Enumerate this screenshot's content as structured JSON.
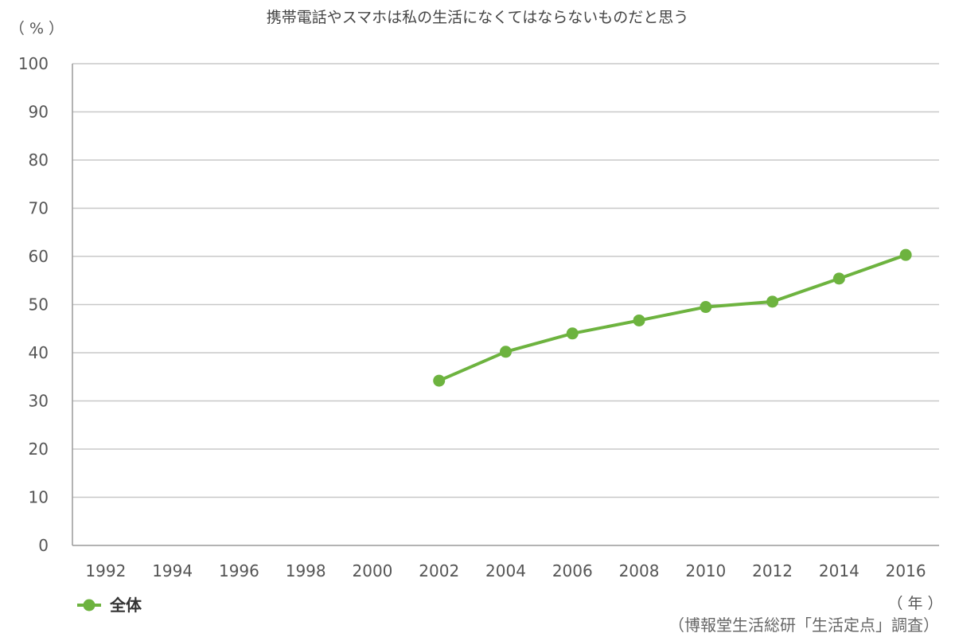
{
  "chart_data": {
    "type": "line",
    "title": "携帯電話やスマホは私の生活になくてはならないものだと思う",
    "y_unit_label": "（ % ）",
    "x_unit_label": "（ 年 ）",
    "source": "（博報堂生活総研「生活定点」調査）",
    "categories": [
      "1992",
      "1994",
      "1996",
      "1998",
      "2000",
      "2002",
      "2004",
      "2006",
      "2008",
      "2010",
      "2012",
      "2014",
      "2016"
    ],
    "y_ticks": [
      "0",
      "10",
      "20",
      "30",
      "40",
      "50",
      "60",
      "70",
      "80",
      "90",
      "100"
    ],
    "ylim": [
      0,
      100
    ],
    "grid": true,
    "legend_position": "bottom-left",
    "series": [
      {
        "name": "全体",
        "color": "#6db33f",
        "values": [
          null,
          null,
          null,
          null,
          null,
          34.2,
          40.2,
          44.0,
          46.7,
          49.5,
          50.6,
          55.4,
          60.3
        ]
      }
    ]
  }
}
